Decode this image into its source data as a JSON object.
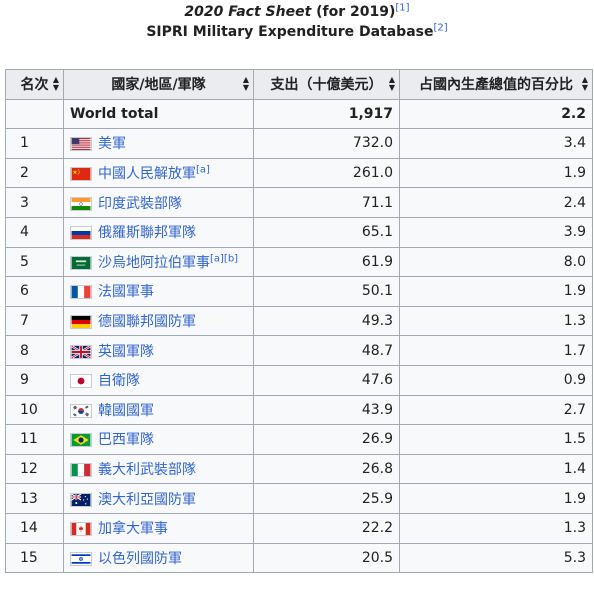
{
  "caption": {
    "line1_italic": "2020 Fact Sheet",
    "line1_rest": " (for 2019)",
    "line1_ref": "[1]",
    "line2": "SIPRI Military Expenditure Database",
    "line2_ref": "[2]"
  },
  "table": {
    "headers": [
      "名次",
      "國家/地區/軍隊",
      "支出（十億美元）",
      "占國內生產總值的百分比"
    ],
    "total": {
      "rank": "",
      "name": "World total",
      "spending": "1,917",
      "gdp": "2.2"
    },
    "rows": [
      {
        "rank": "1",
        "flag": "us",
        "name": "美軍",
        "note": "",
        "spending": "732.0",
        "gdp": "3.4"
      },
      {
        "rank": "2",
        "flag": "cn",
        "name": "中國人民解放軍",
        "note": "[a]",
        "spending": "261.0",
        "gdp": "1.9"
      },
      {
        "rank": "3",
        "flag": "in",
        "name": "印度武裝部隊",
        "note": "",
        "spending": "71.1",
        "gdp": "2.4"
      },
      {
        "rank": "4",
        "flag": "ru",
        "name": "俄羅斯聯邦軍隊",
        "note": "",
        "spending": "65.1",
        "gdp": "3.9"
      },
      {
        "rank": "5",
        "flag": "sa",
        "name": "沙烏地阿拉伯軍事",
        "note": "[a][b]",
        "spending": "61.9",
        "gdp": "8.0"
      },
      {
        "rank": "6",
        "flag": "fr",
        "name": "法國軍事",
        "note": "",
        "spending": "50.1",
        "gdp": "1.9"
      },
      {
        "rank": "7",
        "flag": "de",
        "name": "德國聯邦國防軍",
        "note": "",
        "spending": "49.3",
        "gdp": "1.3"
      },
      {
        "rank": "8",
        "flag": "gb",
        "name": "英國軍隊",
        "note": "",
        "spending": "48.7",
        "gdp": "1.7"
      },
      {
        "rank": "9",
        "flag": "jp",
        "name": "自衛隊",
        "note": "",
        "spending": "47.6",
        "gdp": "0.9"
      },
      {
        "rank": "10",
        "flag": "kr",
        "name": "韓國國軍",
        "note": "",
        "spending": "43.9",
        "gdp": "2.7"
      },
      {
        "rank": "11",
        "flag": "br",
        "name": "巴西軍隊",
        "note": "",
        "spending": "26.9",
        "gdp": "1.5"
      },
      {
        "rank": "12",
        "flag": "it",
        "name": "義大利武裝部隊",
        "note": "",
        "spending": "26.8",
        "gdp": "1.4"
      },
      {
        "rank": "13",
        "flag": "au",
        "name": "澳大利亞國防軍",
        "note": "",
        "spending": "25.9",
        "gdp": "1.9"
      },
      {
        "rank": "14",
        "flag": "ca",
        "name": "加拿大軍事",
        "note": "",
        "spending": "22.2",
        "gdp": "1.3"
      },
      {
        "rank": "15",
        "flag": "il",
        "name": "以色列國防軍",
        "note": "",
        "spending": "20.5",
        "gdp": "5.3"
      }
    ]
  },
  "colors": {
    "link": "#3366cc",
    "header_bg": "#eaecf0",
    "cell_bg": "#f8f9fa",
    "border": "#a2a9b1"
  }
}
